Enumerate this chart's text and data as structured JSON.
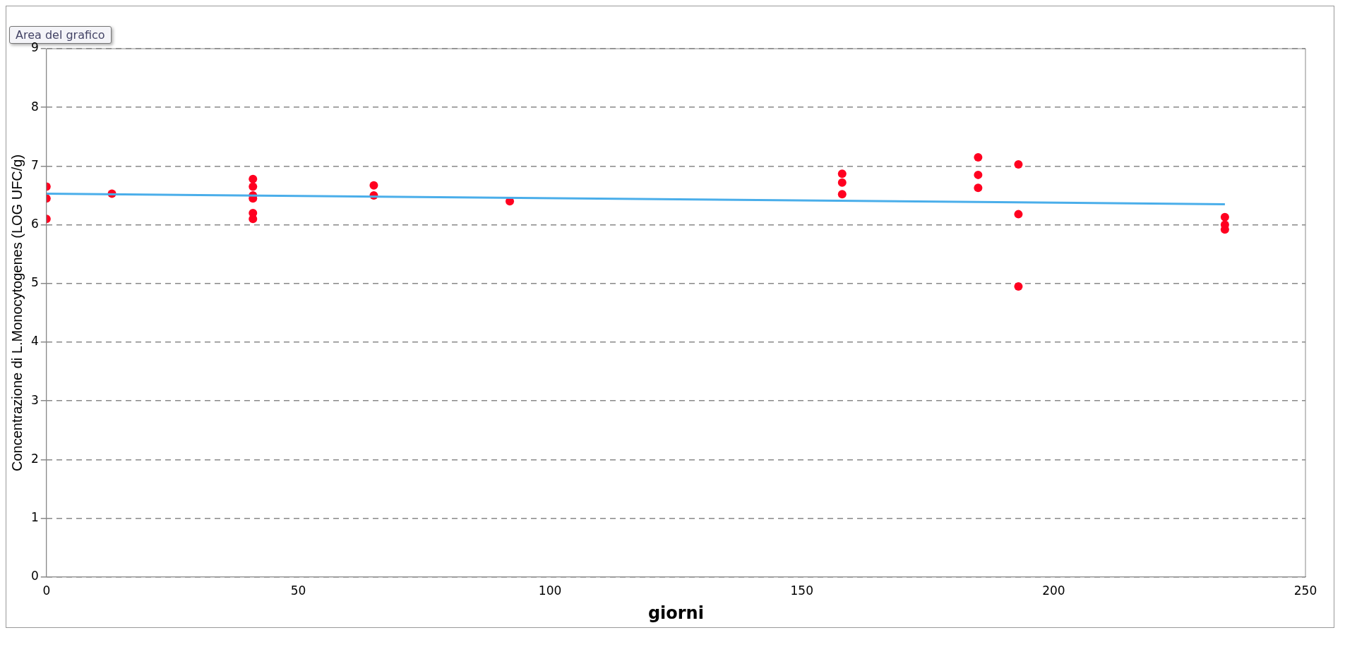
{
  "chart_data": {
    "type": "scatter",
    "xlabel": "giorni",
    "ylabel": "Concentrazione di L.Monocytogenes (LOG UFC/g)",
    "annotations": [
      "Area del grafico"
    ],
    "xlim": [
      0,
      250
    ],
    "xticks": [
      0,
      50,
      100,
      150,
      200,
      250
    ],
    "ylim": [
      0,
      9
    ],
    "yticks": [
      0,
      1,
      2,
      3,
      4,
      5,
      6,
      7,
      8,
      9
    ],
    "grid": "y",
    "legend": false,
    "marker": "circle",
    "series": [
      {
        "color": "#ff0020",
        "x": [
          0,
          0,
          0,
          13,
          41,
          41,
          41,
          41,
          41,
          41,
          65,
          65,
          92,
          158,
          158,
          158,
          185,
          185,
          185,
          193,
          193,
          193,
          234,
          234,
          234
        ],
        "values": [
          6.65,
          6.45,
          6.1,
          6.53,
          6.78,
          6.65,
          6.5,
          6.45,
          6.2,
          6.1,
          6.67,
          6.5,
          6.4,
          6.87,
          6.72,
          6.52,
          7.15,
          6.85,
          6.63,
          7.03,
          6.18,
          4.95,
          6.13,
          6.0,
          5.92
        ]
      },
      {
        "type": "line",
        "color": "#4aaeea",
        "x": [
          0,
          234
        ],
        "values": [
          6.53,
          6.35
        ],
        "marker": "none"
      }
    ]
  }
}
